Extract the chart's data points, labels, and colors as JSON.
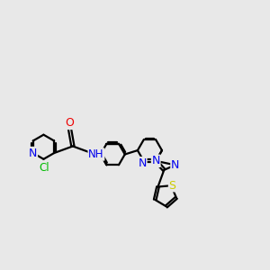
{
  "bg_color": "#e8e8e8",
  "bond_color": "#000000",
  "bond_width": 1.6,
  "atom_colors": {
    "N": "#0000ee",
    "O": "#ee0000",
    "S": "#cccc00",
    "Cl": "#00bb00",
    "C": "#000000"
  },
  "font_size": 8.5,
  "fig_size": [
    3.0,
    3.0
  ],
  "dpi": 100
}
